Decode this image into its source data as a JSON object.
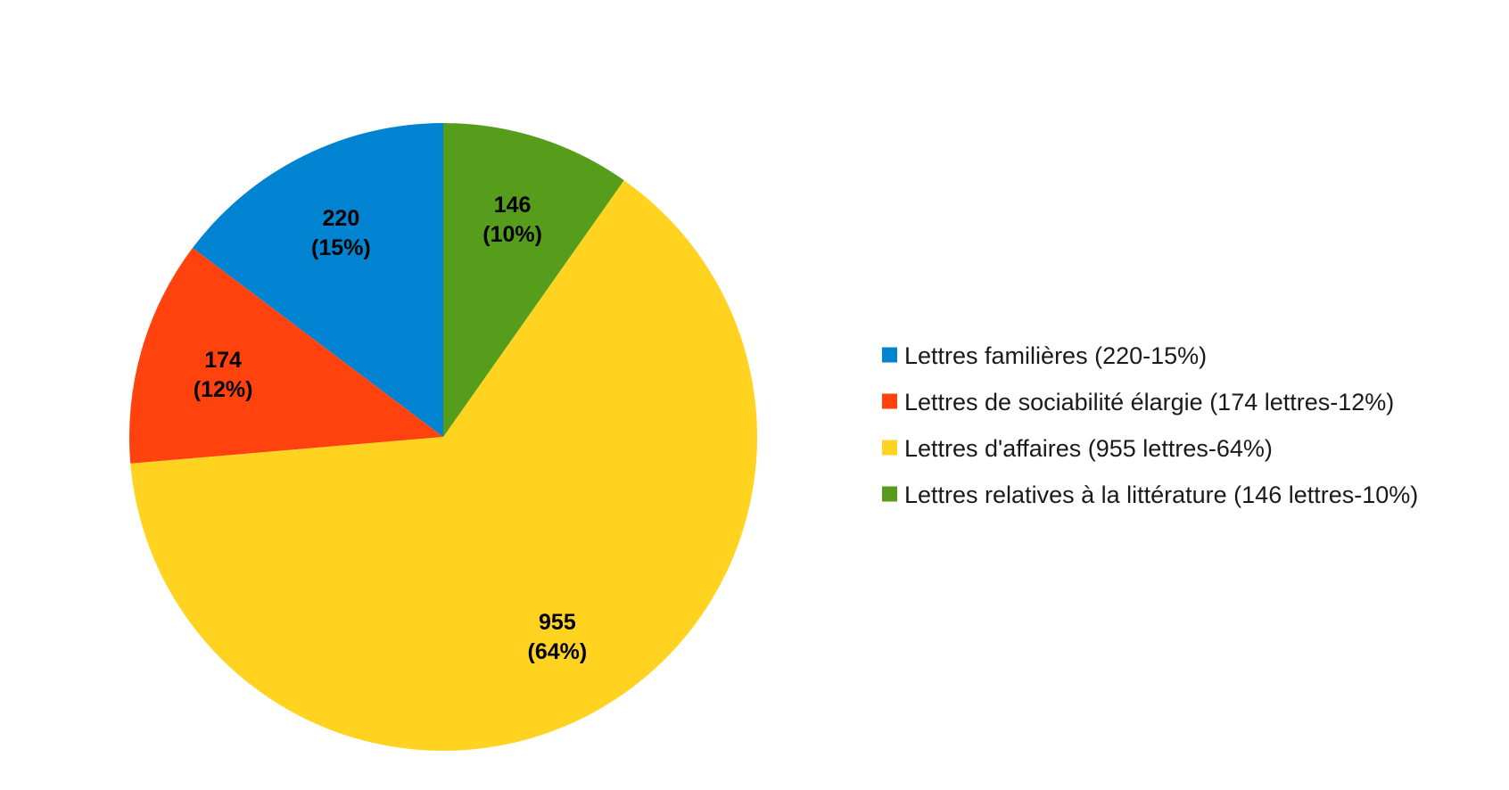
{
  "chart_data": {
    "type": "pie",
    "title": "",
    "categories": [
      "Lettres familières (220-15%)",
      "Lettres de sociabilité élargie (174 lettres-12%)",
      "Lettres d'affaires (955 lettres-64%)",
      "Lettres relatives à la littérature (146 lettres-10%)"
    ],
    "values": [
      220,
      174,
      955,
      146
    ],
    "value_labels": [
      "220",
      "174",
      "955",
      "146"
    ],
    "percent_labels": [
      "(15%)",
      "(12%)",
      "(64%)",
      "(10%)"
    ],
    "colors": [
      "#0084d1",
      "#ff420e",
      "#ffd320",
      "#579d1c"
    ],
    "start_angle_deg": 0,
    "direction": "counterclockwise",
    "legend_position": "right"
  }
}
